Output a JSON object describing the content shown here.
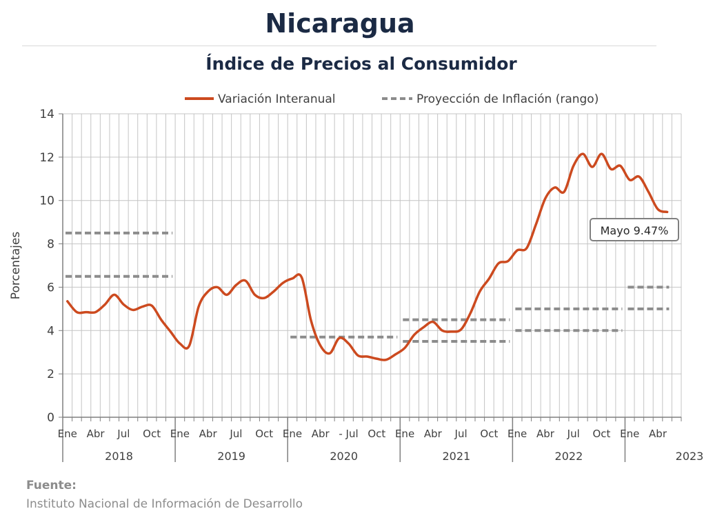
{
  "title": "Nicaragua",
  "subtitle": "Índice de Precios al Consumidor",
  "source": {
    "label": "Fuente:",
    "text": "Instituto Nacional de Información de  Desarrollo"
  },
  "colors": {
    "line": "#cc4a1f",
    "projection": "#8c8c8c",
    "grid": "#c4c4c4",
    "axis": "#7f7f7f"
  },
  "chart_data": {
    "type": "line",
    "ylabel": "Porcentajes",
    "ylim": [
      0,
      14
    ],
    "yticks": [
      "0",
      "2",
      "4",
      "6",
      "8",
      "10",
      "12",
      "14"
    ],
    "grid": "vertical-and-horizontal",
    "legend": {
      "position": "top",
      "entries": [
        "Variación Interanual",
        "Proyección de Inflación (rango)"
      ]
    },
    "month_tick_labels": [
      {
        "month": 0,
        "label": "Ene"
      },
      {
        "month": 3,
        "label": "Abr"
      },
      {
        "month": 6,
        "label": "Jul"
      },
      {
        "month": 9,
        "label": "Oct"
      },
      {
        "month": 12,
        "label": "Ene"
      },
      {
        "month": 15,
        "label": "Abr"
      },
      {
        "month": 18,
        "label": "Jul"
      },
      {
        "month": 21,
        "label": "Oct"
      },
      {
        "month": 24,
        "label": "Ene"
      },
      {
        "month": 27,
        "label": "Abr"
      },
      {
        "month": 30,
        "label": "- Jul"
      },
      {
        "month": 33,
        "label": "Oct"
      },
      {
        "month": 36,
        "label": "Ene"
      },
      {
        "month": 39,
        "label": "Abr"
      },
      {
        "month": 42,
        "label": "Jul"
      },
      {
        "month": 45,
        "label": "Oct"
      },
      {
        "month": 48,
        "label": "Ene"
      },
      {
        "month": 51,
        "label": "Abr"
      },
      {
        "month": 54,
        "label": "Jul"
      },
      {
        "month": 57,
        "label": "Oct"
      },
      {
        "month": 60,
        "label": "Ene"
      },
      {
        "month": 63,
        "label": "Abr"
      }
    ],
    "years": [
      "2018",
      "2019",
      "2020",
      "2021",
      "2022",
      "2023"
    ],
    "series": [
      {
        "name": "Variación Interanual",
        "values": [
          5.35,
          4.85,
          4.85,
          4.85,
          5.2,
          5.65,
          5.2,
          4.95,
          5.1,
          5.15,
          4.5,
          3.95,
          3.4,
          3.3,
          5.1,
          5.8,
          6.0,
          5.65,
          6.1,
          6.3,
          5.65,
          5.5,
          5.8,
          6.2,
          6.4,
          6.45,
          4.45,
          3.3,
          2.95,
          3.65,
          3.4,
          2.85,
          2.8,
          2.7,
          2.65,
          2.9,
          3.2,
          3.8,
          4.15,
          4.4,
          4.0,
          3.95,
          4.05,
          4.8,
          5.8,
          6.4,
          7.1,
          7.2,
          7.7,
          7.8,
          8.9,
          10.1,
          10.6,
          10.4,
          11.6,
          12.15,
          11.55,
          12.15,
          11.45,
          11.6,
          10.95,
          11.1,
          10.4,
          9.6,
          9.47
        ]
      },
      {
        "name": "Proyección de Inflación (rango)",
        "segments": [
          {
            "start": 0,
            "end": 11,
            "low": 6.5,
            "high": 8.5
          },
          {
            "start": 24,
            "end": 35,
            "low": 3.7,
            "high": 3.7
          },
          {
            "start": 36,
            "end": 47,
            "low": 3.5,
            "high": 4.5
          },
          {
            "start": 48,
            "end": 59,
            "low": 4.0,
            "high": 5.0
          },
          {
            "start": 60,
            "end": 64,
            "low": 5.0,
            "high": 6.0
          }
        ]
      }
    ],
    "annotation": {
      "text": "Mayo 9.47%",
      "month": 64,
      "value": 9.47
    }
  }
}
